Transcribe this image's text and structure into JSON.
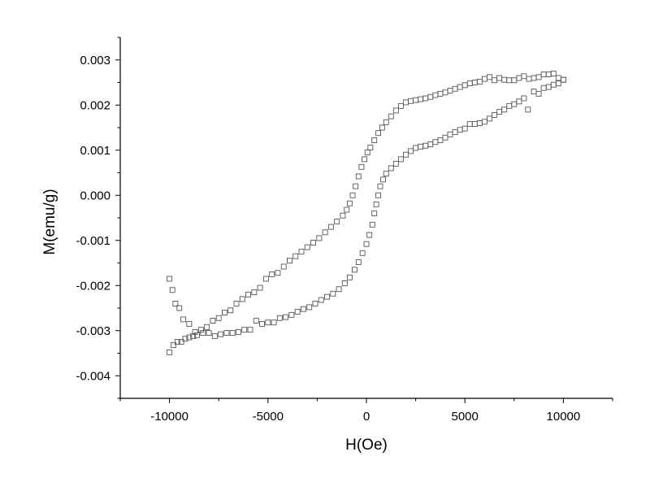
{
  "chart_data": {
    "type": "scatter",
    "xlabel": "H(Oe)",
    "ylabel": "M(emu/g)",
    "xlim": [
      -12500,
      12500
    ],
    "ylim": [
      -0.0045,
      0.0035
    ],
    "grid": false,
    "legend": "none",
    "marker": "open-square",
    "marker_color": "#555555",
    "x_ticks": [
      {
        "value": -10000,
        "label": "-10000"
      },
      {
        "value": -5000,
        "label": "-5000"
      },
      {
        "value": 0,
        "label": "0"
      },
      {
        "value": 5000,
        "label": "5000"
      },
      {
        "value": 10000,
        "label": "10000"
      }
    ],
    "y_ticks": [
      {
        "value": 0.003,
        "label": "0.003"
      },
      {
        "value": 0.002,
        "label": "0.002"
      },
      {
        "value": 0.001,
        "label": "0.001"
      },
      {
        "value": 0.0,
        "label": "0.000"
      },
      {
        "value": -0.001,
        "label": "-0.001"
      },
      {
        "value": -0.002,
        "label": "-0.002"
      },
      {
        "value": -0.003,
        "label": "-0.003"
      },
      {
        "value": -0.004,
        "label": "-0.004"
      }
    ],
    "series": [
      {
        "points": [
          [
            10000,
            0.00256
          ],
          [
            9750,
            0.0026
          ],
          [
            9500,
            0.0027
          ],
          [
            9250,
            0.00268
          ],
          [
            9000,
            0.00268
          ],
          [
            8750,
            0.00262
          ],
          [
            8500,
            0.0026
          ],
          [
            8250,
            0.00258
          ],
          [
            8000,
            0.00264
          ],
          [
            7750,
            0.0026
          ],
          [
            7500,
            0.00255
          ],
          [
            7250,
            0.00255
          ],
          [
            7000,
            0.00256
          ],
          [
            6750,
            0.0026
          ],
          [
            6500,
            0.00255
          ],
          [
            6250,
            0.00262
          ],
          [
            6000,
            0.00258
          ],
          [
            5750,
            0.00252
          ],
          [
            5500,
            0.0025
          ],
          [
            5250,
            0.00248
          ],
          [
            5000,
            0.00244
          ],
          [
            4750,
            0.0024
          ],
          [
            4500,
            0.00236
          ],
          [
            4250,
            0.00232
          ],
          [
            4000,
            0.00228
          ],
          [
            3750,
            0.00225
          ],
          [
            3500,
            0.00222
          ],
          [
            3250,
            0.00218
          ],
          [
            3000,
            0.00215
          ],
          [
            2750,
            0.00213
          ],
          [
            2500,
            0.00211
          ],
          [
            2250,
            0.00209
          ],
          [
            2000,
            0.00206
          ],
          [
            1750,
            0.00198
          ],
          [
            1500,
            0.00188
          ],
          [
            1250,
            0.00175
          ],
          [
            1000,
            0.00162
          ],
          [
            800,
            0.0015
          ],
          [
            600,
            0.00138
          ],
          [
            400,
            0.00122
          ],
          [
            200,
            0.00106
          ],
          [
            50,
            0.00095
          ],
          [
            -100,
            0.0008
          ],
          [
            -250,
            0.00063
          ],
          [
            -400,
            0.00042
          ],
          [
            -550,
            0.0002
          ],
          [
            -700,
            0.0
          ],
          [
            -850,
            -0.00018
          ],
          [
            -1000,
            -0.00032
          ],
          [
            -1200,
            -0.00045
          ],
          [
            -1500,
            -0.00058
          ],
          [
            -1800,
            -0.0007
          ],
          [
            -2100,
            -0.00082
          ],
          [
            -2400,
            -0.00095
          ],
          [
            -2700,
            -0.00105
          ],
          [
            -3000,
            -0.00115
          ],
          [
            -3300,
            -0.00125
          ],
          [
            -3600,
            -0.00135
          ],
          [
            -3900,
            -0.00145
          ],
          [
            -4200,
            -0.00158
          ],
          [
            -4500,
            -0.00172
          ],
          [
            -4800,
            -0.00175
          ],
          [
            -5100,
            -0.00185
          ],
          [
            -5400,
            -0.00205
          ],
          [
            -5700,
            -0.00215
          ],
          [
            -6000,
            -0.0022
          ],
          [
            -6300,
            -0.0023
          ],
          [
            -6600,
            -0.0024
          ],
          [
            -6900,
            -0.00255
          ],
          [
            -7200,
            -0.0026
          ],
          [
            -7500,
            -0.00272
          ],
          [
            -7800,
            -0.00278
          ],
          [
            -8100,
            -0.00292
          ],
          [
            -8400,
            -0.00298
          ],
          [
            -8700,
            -0.00303
          ],
          [
            -9000,
            -0.00285
          ],
          [
            -9300,
            -0.00275
          ],
          [
            -9500,
            -0.0025
          ],
          [
            -9700,
            -0.0024
          ],
          [
            -9850,
            -0.0021
          ],
          [
            -10000,
            -0.00185
          ]
        ]
      },
      {
        "points": [
          [
            -10000,
            -0.00348
          ],
          [
            -9800,
            -0.00332
          ],
          [
            -9600,
            -0.00325
          ],
          [
            -9400,
            -0.00325
          ],
          [
            -9200,
            -0.00318
          ],
          [
            -9000,
            -0.00315
          ],
          [
            -8800,
            -0.00312
          ],
          [
            -8600,
            -0.0031
          ],
          [
            -8300,
            -0.00305
          ],
          [
            -8000,
            -0.00305
          ],
          [
            -7700,
            -0.00312
          ],
          [
            -7400,
            -0.00308
          ],
          [
            -7100,
            -0.00305
          ],
          [
            -6800,
            -0.00305
          ],
          [
            -6500,
            -0.00303
          ],
          [
            -6200,
            -0.00298
          ],
          [
            -5900,
            -0.00298
          ],
          [
            -5600,
            -0.00278
          ],
          [
            -5300,
            -0.00285
          ],
          [
            -5000,
            -0.00282
          ],
          [
            -4700,
            -0.00282
          ],
          [
            -4400,
            -0.00272
          ],
          [
            -4100,
            -0.0027
          ],
          [
            -3800,
            -0.00265
          ],
          [
            -3500,
            -0.00258
          ],
          [
            -3200,
            -0.00252
          ],
          [
            -2900,
            -0.00248
          ],
          [
            -2600,
            -0.0024
          ],
          [
            -2300,
            -0.00232
          ],
          [
            -2000,
            -0.00225
          ],
          [
            -1700,
            -0.00218
          ],
          [
            -1400,
            -0.00208
          ],
          [
            -1100,
            -0.00195
          ],
          [
            -850,
            -0.00182
          ],
          [
            -600,
            -0.00165
          ],
          [
            -400,
            -0.00148
          ],
          [
            -200,
            -0.00128
          ],
          [
            0,
            -0.00108
          ],
          [
            150,
            -0.00088
          ],
          [
            300,
            -0.00065
          ],
          [
            400,
            -0.0004
          ],
          [
            500,
            -0.0002
          ],
          [
            600,
            0.0
          ],
          [
            700,
            0.0002
          ],
          [
            850,
            0.00035
          ],
          [
            1000,
            0.00048
          ],
          [
            1250,
            0.0006
          ],
          [
            1500,
            0.0007
          ],
          [
            1750,
            0.0008
          ],
          [
            2000,
            0.0009
          ],
          [
            2250,
            0.00098
          ],
          [
            2500,
            0.00105
          ],
          [
            2750,
            0.00108
          ],
          [
            3000,
            0.0011
          ],
          [
            3250,
            0.00113
          ],
          [
            3500,
            0.00118
          ],
          [
            3750,
            0.00122
          ],
          [
            4000,
            0.00128
          ],
          [
            4250,
            0.00135
          ],
          [
            4500,
            0.0014
          ],
          [
            4750,
            0.00145
          ],
          [
            5000,
            0.00148
          ],
          [
            5250,
            0.00158
          ],
          [
            5500,
            0.00158
          ],
          [
            5750,
            0.0016
          ],
          [
            6000,
            0.00163
          ],
          [
            6250,
            0.0017
          ],
          [
            6500,
            0.00178
          ],
          [
            6750,
            0.00185
          ],
          [
            7000,
            0.0019
          ],
          [
            7250,
            0.00198
          ],
          [
            7500,
            0.00202
          ],
          [
            7750,
            0.00208
          ],
          [
            8000,
            0.00215
          ],
          [
            8200,
            0.0019
          ],
          [
            8500,
            0.0023
          ],
          [
            8750,
            0.00225
          ],
          [
            9000,
            0.00238
          ],
          [
            9250,
            0.0024
          ],
          [
            9500,
            0.00245
          ],
          [
            9750,
            0.00248
          ],
          [
            10000,
            0.00256
          ]
        ]
      }
    ]
  }
}
